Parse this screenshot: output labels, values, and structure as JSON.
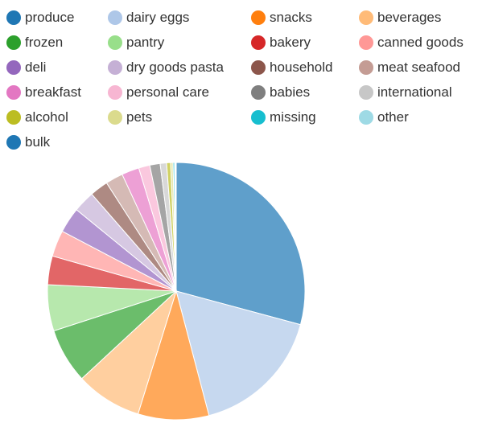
{
  "chart_data": {
    "type": "pie",
    "legend_position": "top",
    "start_angle_deg": 0,
    "direction": "clockwise",
    "slices": [
      {
        "label": "produce",
        "value": 29.2,
        "legend_color": "#1f77b4",
        "color": "#5f9fcb"
      },
      {
        "label": "dairy eggs",
        "value": 16.7,
        "legend_color": "#aec7e8",
        "color": "#c6d8ef"
      },
      {
        "label": "snacks",
        "value": 8.9,
        "legend_color": "#ff7f0e",
        "color": "#ffa95b"
      },
      {
        "label": "beverages",
        "value": 8.3,
        "legend_color": "#ffbb78",
        "color": "#ffcf9f"
      },
      {
        "label": "frozen",
        "value": 6.9,
        "legend_color": "#2ca02c",
        "color": "#6bbd6b"
      },
      {
        "label": "pantry",
        "value": 5.8,
        "legend_color": "#98df8a",
        "color": "#b7e8ad"
      },
      {
        "label": "bakery",
        "value": 3.6,
        "legend_color": "#d62728",
        "color": "#e26667"
      },
      {
        "label": "canned goods",
        "value": 3.3,
        "legend_color": "#ff9896",
        "color": "#ffb6b5"
      },
      {
        "label": "deli",
        "value": 3.2,
        "legend_color": "#9467bd",
        "color": "#b295d1"
      },
      {
        "label": "dry goods pasta",
        "value": 2.7,
        "legend_color": "#c5b0d5",
        "color": "#d6c8e2"
      },
      {
        "label": "household",
        "value": 2.3,
        "legend_color": "#8c564b",
        "color": "#ae8a83"
      },
      {
        "label": "meat seafood",
        "value": 2.2,
        "legend_color": "#c49c94",
        "color": "#d5bab5"
      },
      {
        "label": "breakfast",
        "value": 2.2,
        "legend_color": "#e377c2",
        "color": "#eda0d5"
      },
      {
        "label": "personal care",
        "value": 1.4,
        "legend_color": "#f7b6d2",
        "color": "#fac8de"
      },
      {
        "label": "babies",
        "value": 1.3,
        "legend_color": "#7f7f7f",
        "color": "#a5a5a5"
      },
      {
        "label": "international",
        "value": 0.8,
        "legend_color": "#c7c7c7",
        "color": "#d8d8d8"
      },
      {
        "label": "alcohol",
        "value": 0.5,
        "legend_color": "#bcbd22",
        "color": "#d0d164"
      },
      {
        "label": "pets",
        "value": 0.3,
        "legend_color": "#dbdb8d",
        "color": "#e6e6af"
      },
      {
        "label": "missing",
        "value": 0.2,
        "legend_color": "#17becf",
        "color": "#5dd2de"
      },
      {
        "label": "other",
        "value": 0.1,
        "legend_color": "#9edae5",
        "color": "#bbe5ed"
      },
      {
        "label": "bulk",
        "value": 0.1,
        "legend_color": "#1f77b4",
        "color": "#5f9fcb"
      }
    ]
  }
}
